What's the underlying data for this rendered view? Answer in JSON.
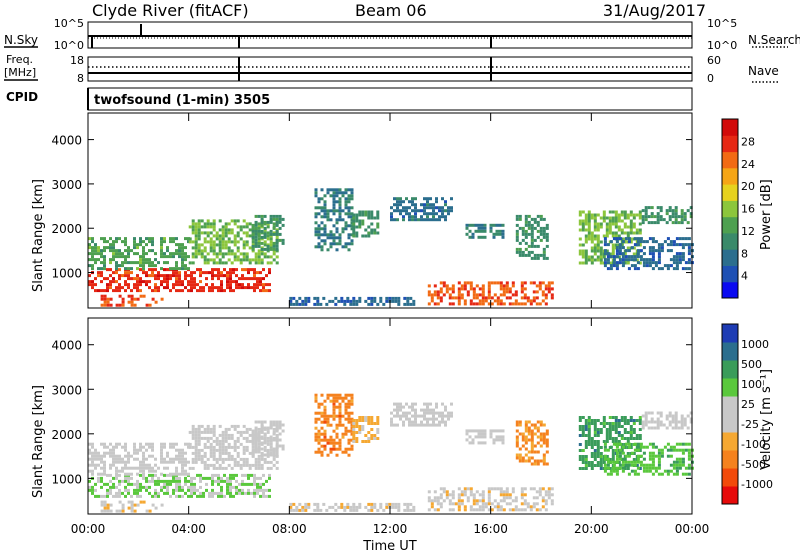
{
  "header": {
    "station": "Clyde River (fitACF)",
    "beam": "Beam 06",
    "date": "31/Aug/2017"
  },
  "noise_panel": {
    "left_label": "N.Sky",
    "right_label": "N.Search",
    "left_ticks": [
      "10^5",
      "10^0"
    ],
    "right_ticks": [
      "10^5",
      "10^0"
    ]
  },
  "freq_panel": {
    "left_label_1": "Freq.",
    "left_label_2": "[MHz]",
    "right_label": "Nave",
    "left_ticks": [
      "18",
      "8"
    ],
    "right_ticks": [
      "60",
      "0"
    ]
  },
  "cpid": {
    "label": "CPID",
    "value": "twofsound (1-min) 3505"
  },
  "chart_data": [
    {
      "type": "heatmap",
      "name": "power",
      "ylabel": "Slant Range [km]",
      "y_ticks": [
        "4000",
        "3000",
        "2000",
        "1000"
      ],
      "ylim": [
        200,
        4600
      ],
      "x_ticks": [
        "00:00",
        "04:00",
        "08:00",
        "12:00",
        "16:00",
        "20:00",
        "00:00"
      ],
      "xlim_hours": [
        0,
        24
      ],
      "colorbar": {
        "label": "Power [dB]",
        "ticks": [
          "28",
          "24",
          "20",
          "16",
          "12",
          "8",
          "4"
        ],
        "range": [
          0,
          30
        ],
        "colors": [
          "#0a0af0",
          "#1e50b4",
          "#2b6e8e",
          "#3a8a6a",
          "#4ea050",
          "#8cc63c",
          "#e6d21e",
          "#f5a516",
          "#f26a14",
          "#e62814",
          "#d20a0a"
        ]
      },
      "regions": [
        {
          "t0": 0.0,
          "t1": 7.2,
          "r0": 600,
          "r1": 1100,
          "v": 26
        },
        {
          "t0": 0.0,
          "t1": 4.0,
          "r0": 1100,
          "r1": 1800,
          "v": 12
        },
        {
          "t0": 4.0,
          "t1": 7.5,
          "r0": 1200,
          "r1": 2200,
          "v": 14
        },
        {
          "t0": 0.5,
          "t1": 3.0,
          "r0": 250,
          "r1": 500,
          "v": 24
        },
        {
          "t0": 6.5,
          "t1": 7.8,
          "r0": 1500,
          "r1": 2300,
          "v": 10
        },
        {
          "t0": 9.0,
          "t1": 10.5,
          "r0": 1500,
          "r1": 2900,
          "v": 8
        },
        {
          "t0": 10.5,
          "t1": 11.5,
          "r0": 1800,
          "r1": 2400,
          "v": 10
        },
        {
          "t0": 12.0,
          "t1": 14.5,
          "r0": 2200,
          "r1": 2700,
          "v": 7
        },
        {
          "t0": 8.0,
          "t1": 13.0,
          "r0": 250,
          "r1": 450,
          "v": 6
        },
        {
          "t0": 13.5,
          "t1": 18.5,
          "r0": 300,
          "r1": 800,
          "v": 24
        },
        {
          "t0": 15.0,
          "t1": 16.5,
          "r0": 1800,
          "r1": 2100,
          "v": 8
        },
        {
          "t0": 17.0,
          "t1": 18.3,
          "r0": 1300,
          "r1": 2300,
          "v": 10
        },
        {
          "t0": 19.5,
          "t1": 22.0,
          "r0": 1200,
          "r1": 2400,
          "v": 14
        },
        {
          "t0": 22.0,
          "t1": 24.0,
          "r0": 2100,
          "r1": 2500,
          "v": 10
        },
        {
          "t0": 20.5,
          "t1": 24.0,
          "r0": 1100,
          "r1": 1800,
          "v": 6
        }
      ]
    },
    {
      "type": "heatmap",
      "name": "velocity",
      "ylabel": "Slant Range [km]",
      "xlabel": "Time UT",
      "y_ticks": [
        "4000",
        "3000",
        "2000",
        "1000"
      ],
      "ylim": [
        200,
        4600
      ],
      "x_ticks": [
        "00:00",
        "04:00",
        "08:00",
        "12:00",
        "16:00",
        "20:00",
        "00:00"
      ],
      "xlim_hours": [
        0,
        24
      ],
      "colorbar": {
        "label": "Velocity [m s⁻¹]",
        "ticks": [
          "1000",
          "500",
          "100",
          "25",
          "-25",
          "-100",
          "-500",
          "-1000"
        ],
        "range": [
          -1200,
          1200
        ],
        "colors": [
          "#e60a0a",
          "#f24a0a",
          "#f5821e",
          "#f5a832",
          "#c8c8c8",
          "#c8c8c8",
          "#5ac83c",
          "#3a9c5a",
          "#2b6e8e",
          "#1e3cb4"
        ]
      },
      "regions": [
        {
          "t0": 0.0,
          "t1": 7.2,
          "r0": 600,
          "r1": 1100,
          "v": 250
        },
        {
          "t0": 0.0,
          "t1": 4.0,
          "r0": 1100,
          "r1": 1800,
          "v": -20
        },
        {
          "t0": 4.0,
          "t1": 7.5,
          "r0": 1200,
          "r1": 2200,
          "v": 15
        },
        {
          "t0": 0.5,
          "t1": 3.0,
          "r0": 250,
          "r1": 500,
          "v": -200
        },
        {
          "t0": 6.5,
          "t1": 7.8,
          "r0": 1500,
          "r1": 2300,
          "v": 10
        },
        {
          "t0": 9.0,
          "t1": 10.5,
          "r0": 1500,
          "r1": 2900,
          "v": -600
        },
        {
          "t0": 10.5,
          "t1": 11.5,
          "r0": 1800,
          "r1": 2400,
          "v": -300
        },
        {
          "t0": 12.0,
          "t1": 14.5,
          "r0": 2200,
          "r1": 2700,
          "v": 5
        },
        {
          "t0": 8.0,
          "t1": 13.0,
          "r0": 250,
          "r1": 450,
          "v": -150
        },
        {
          "t0": 13.5,
          "t1": 18.5,
          "r0": 300,
          "r1": 800,
          "v": -180
        },
        {
          "t0": 15.0,
          "t1": 16.5,
          "r0": 1800,
          "r1": 2100,
          "v": 0
        },
        {
          "t0": 17.0,
          "t1": 18.3,
          "r0": 1300,
          "r1": 2300,
          "v": -500
        },
        {
          "t0": 19.5,
          "t1": 22.0,
          "r0": 1200,
          "r1": 2400,
          "v": 600
        },
        {
          "t0": 22.0,
          "t1": 24.0,
          "r0": 2100,
          "r1": 2500,
          "v": 10
        },
        {
          "t0": 20.5,
          "t1": 24.0,
          "r0": 1100,
          "r1": 1800,
          "v": 400
        }
      ]
    }
  ]
}
